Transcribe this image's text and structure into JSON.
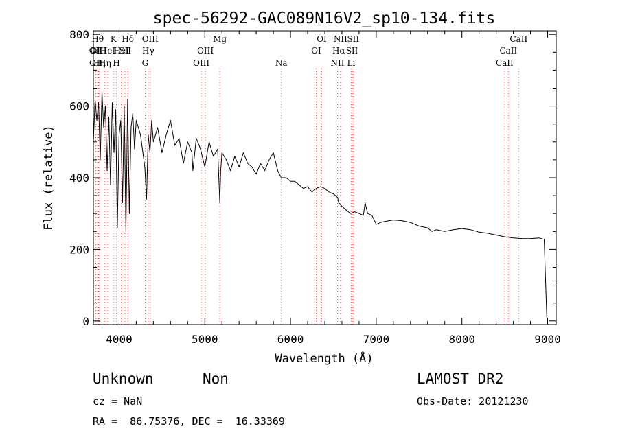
{
  "chart_data": {
    "type": "line",
    "title": "spec-56292-GAC089N16V2_sp10-134.fits",
    "xlabel": "Wavelength (Å)",
    "ylabel": "Flux (relative)",
    "xlim": [
      3700,
      9100
    ],
    "ylim": [
      -10,
      810
    ],
    "xticks": [
      4000,
      5000,
      6000,
      7000,
      8000,
      9000
    ],
    "yticks": [
      0,
      200,
      400,
      600,
      800
    ],
    "grid": false,
    "line_color": "#000000",
    "marker_color": "#e06060",
    "series": [
      {
        "x": [
          3700,
          3720,
          3740,
          3760,
          3780,
          3800,
          3820,
          3840,
          3860,
          3880,
          3900,
          3920,
          3940,
          3960,
          3980,
          4000,
          4020,
          4040,
          4060,
          4080,
          4100,
          4120,
          4140,
          4160,
          4180,
          4200,
          4250,
          4300,
          4320,
          4340,
          4360,
          4380,
          4400,
          4450,
          4500,
          4550,
          4600,
          4650,
          4700,
          4750,
          4800,
          4850,
          4861,
          4900,
          4950,
          5000,
          5050,
          5100,
          5150,
          5167,
          5175,
          5185,
          5200,
          5250,
          5300,
          5350,
          5400,
          5450,
          5500,
          5550,
          5600,
          5650,
          5700,
          5750,
          5800,
          5850,
          5893,
          5950,
          6000,
          6050,
          6100,
          6150,
          6200,
          6250,
          6300,
          6350,
          6400,
          6450,
          6500,
          6550,
          6563,
          6600,
          6650,
          6700,
          6750,
          6800,
          6850,
          6870,
          6900,
          6950,
          7000,
          7050,
          7100,
          7150,
          7200,
          7300,
          7400,
          7500,
          7600,
          7650,
          7700,
          7800,
          7900,
          8000,
          8100,
          8200,
          8300,
          8400,
          8500,
          8600,
          8700,
          8800,
          8900,
          8960,
          8975,
          8990
        ],
        "y": [
          500,
          620,
          560,
          610,
          450,
          640,
          540,
          600,
          420,
          570,
          380,
          610,
          470,
          590,
          260,
          520,
          560,
          330,
          600,
          250,
          620,
          300,
          540,
          580,
          480,
          560,
          520,
          430,
          340,
          520,
          470,
          560,
          500,
          540,
          470,
          520,
          560,
          490,
          510,
          440,
          500,
          470,
          420,
          510,
          480,
          430,
          500,
          460,
          480,
          380,
          330,
          420,
          470,
          450,
          420,
          460,
          430,
          470,
          440,
          430,
          410,
          440,
          420,
          450,
          470,
          420,
          400,
          400,
          390,
          390,
          380,
          370,
          375,
          360,
          370,
          375,
          370,
          360,
          355,
          345,
          330,
          320,
          310,
          300,
          305,
          300,
          295,
          330,
          300,
          295,
          270,
          275,
          278,
          280,
          282,
          280,
          275,
          265,
          260,
          250,
          255,
          250,
          255,
          258,
          255,
          248,
          245,
          240,
          235,
          232,
          230,
          230,
          232,
          228,
          120,
          10
        ]
      }
    ],
    "line_markers": [
      {
        "wl": 3727,
        "label": "OII",
        "row": 1
      },
      {
        "wl": 3729,
        "label": "OII",
        "row": 2
      },
      {
        "wl": 3750,
        "label": "Hθ",
        "row": 0
      },
      {
        "wl": 3760,
        "label": "OIII",
        "row": 1
      },
      {
        "wl": 3770,
        "label": "Hη",
        "row": 2
      },
      {
        "wl": 3835,
        "label": "Hη",
        "row": 2
      },
      {
        "wl": 3869,
        "label": "HeI",
        "row": 1
      },
      {
        "wl": 3934,
        "label": "K",
        "row": 0
      },
      {
        "wl": 3969,
        "label": "H",
        "row": 2
      },
      {
        "wl": 4026,
        "label": "HeI",
        "row": 1
      },
      {
        "wl": 4070,
        "label": "SII",
        "row": 1
      },
      {
        "wl": 4102,
        "label": "Hδ",
        "row": 0
      },
      {
        "wl": 4304,
        "label": "G",
        "row": 2
      },
      {
        "wl": 4340,
        "label": "Hγ",
        "row": 1
      },
      {
        "wl": 4363,
        "label": "OIII",
        "row": 0
      },
      {
        "wl": 4959,
        "label": "OIII",
        "row": 2
      },
      {
        "wl": 5007,
        "label": "OIII",
        "row": 1
      },
      {
        "wl": 5175,
        "label": "Mg",
        "row": 0
      },
      {
        "wl": 5893,
        "label": "Na",
        "row": 2
      },
      {
        "wl": 6300,
        "label": "OI",
        "row": 1
      },
      {
        "wl": 6364,
        "label": "OI",
        "row": 0
      },
      {
        "wl": 6548,
        "label": "NII",
        "row": 2
      },
      {
        "wl": 6563,
        "label": "Hα",
        "row": 1
      },
      {
        "wl": 6583,
        "label": "NII",
        "row": 0
      },
      {
        "wl": 6708,
        "label": "Li",
        "row": 2
      },
      {
        "wl": 6717,
        "label": "SII",
        "row": 1
      },
      {
        "wl": 6731,
        "label": "SII",
        "row": 0
      },
      {
        "wl": 8498,
        "label": "CaII",
        "row": 2
      },
      {
        "wl": 8542,
        "label": "CaII",
        "row": 1
      },
      {
        "wl": 8662,
        "label": "CaII",
        "row": 0
      }
    ]
  },
  "info": {
    "class": "Unknown",
    "subclass": "Non",
    "release": "LAMOST DR2",
    "cz": "cz = NaN",
    "obs_date": "Obs-Date: 20121230",
    "coords": "RA =  86.75376, DEC =  16.33369"
  }
}
